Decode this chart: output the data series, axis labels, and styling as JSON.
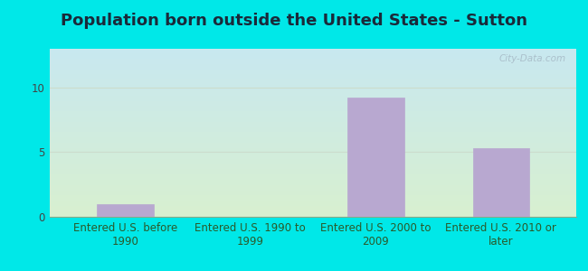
{
  "title": "Population born outside the United States - Sutton",
  "categories": [
    "Entered U.S. before\n1990",
    "Entered U.S. 1990 to\n1999",
    "Entered U.S. 2000 to\n2009",
    "Entered U.S. 2010 or\nlater"
  ],
  "values": [
    1.0,
    0.0,
    9.2,
    5.3
  ],
  "bar_color": "#b8a8d0",
  "ylim": [
    0,
    13
  ],
  "yticks": [
    0,
    5,
    10
  ],
  "grid_color": "#ccddcc",
  "background_outer": "#00e8e8",
  "bg_top_left": "#c8e8f0",
  "bg_bottom_right": "#d8f0d0",
  "title_fontsize": 13,
  "tick_fontsize": 8.5,
  "watermark_text": "City-Data.com",
  "watermark_color": "#a8bcc8",
  "title_color": "#1a2a3a"
}
